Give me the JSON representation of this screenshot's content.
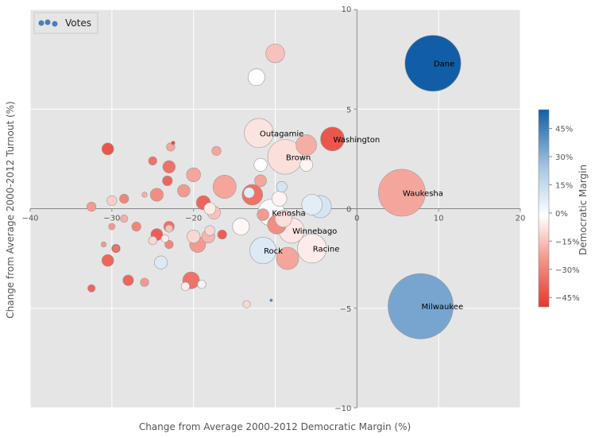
{
  "chart_data": {
    "type": "scatter",
    "xlabel": "Change from Average 2000-2012 Democratic Margin (%)",
    "ylabel": "Change from Average 2000-2012 Turnout (%)",
    "colorbar_label": "Democratic Margin",
    "xlim": [
      -40,
      20
    ],
    "ylim": [
      -10,
      10
    ],
    "x_ticks": [
      -40,
      -30,
      -20,
      -10,
      0,
      10,
      20
    ],
    "y_ticks": [
      -10,
      -5,
      0,
      5,
      10
    ],
    "x_tick_labels": [
      "−40",
      "−30",
      "−20",
      "−10",
      "0",
      "10",
      "20"
    ],
    "y_tick_labels": [
      "−10",
      "−5",
      "0",
      "5",
      "10"
    ],
    "colorbar_ticks": [
      45,
      30,
      15,
      0,
      -15,
      -30,
      -45
    ],
    "colorbar_tick_labels": [
      "45%",
      "30%",
      "15%",
      "0%",
      "−15%",
      "−30%",
      "−45%"
    ],
    "colorbar_range": [
      -50,
      55
    ],
    "grid": true,
    "legend": {
      "position": "top-left",
      "label": "Votes"
    },
    "colors": {
      "background": "#e5e5e5",
      "grid": "#ffffff",
      "dem": "#2166ac",
      "rep": "#e8362c"
    },
    "points": [
      {
        "x": 9.3,
        "y": 7.3,
        "size": 220000,
        "margin": 55,
        "label": "Dane"
      },
      {
        "x": 7.8,
        "y": -4.9,
        "size": 300000,
        "margin": 35,
        "label": "Milwaukee"
      },
      {
        "x": 5.5,
        "y": 0.8,
        "size": 155000,
        "margin": -22,
        "label": "Waukesha"
      },
      {
        "x": -3.0,
        "y": 3.5,
        "size": 40000,
        "margin": -42,
        "label": "Washington"
      },
      {
        "x": -12.0,
        "y": 3.8,
        "size": 60000,
        "margin": -7,
        "label": "Outagamie"
      },
      {
        "x": -8.8,
        "y": 2.6,
        "size": 85000,
        "margin": -8,
        "label": "Brown"
      },
      {
        "x": -10.5,
        "y": -0.2,
        "size": 50000,
        "margin": 2,
        "label": "Kenosha"
      },
      {
        "x": -8.0,
        "y": -1.1,
        "size": 45000,
        "margin": -6,
        "label": "Winnebago"
      },
      {
        "x": -5.5,
        "y": -2.0,
        "size": 60000,
        "margin": -5,
        "label": "Racine"
      },
      {
        "x": -11.5,
        "y": -2.1,
        "size": 50000,
        "margin": 10,
        "label": "Rock"
      },
      {
        "x": -10.0,
        "y": 7.8,
        "size": 25000,
        "margin": -15,
        "label": ""
      },
      {
        "x": -12.3,
        "y": 6.6,
        "size": 20000,
        "margin": 0,
        "label": ""
      },
      {
        "x": -6.2,
        "y": 3.2,
        "size": 30000,
        "margin": -20,
        "label": ""
      },
      {
        "x": -6.2,
        "y": 2.2,
        "size": 12000,
        "margin": -3,
        "label": ""
      },
      {
        "x": -9.2,
        "y": 1.1,
        "size": 8000,
        "margin": 12,
        "label": ""
      },
      {
        "x": -11.8,
        "y": 2.2,
        "size": 12000,
        "margin": 0,
        "label": ""
      },
      {
        "x": -11.8,
        "y": 1.4,
        "size": 10000,
        "margin": -22,
        "label": ""
      },
      {
        "x": -9.5,
        "y": 0.5,
        "size": 16000,
        "margin": -3,
        "label": ""
      },
      {
        "x": -5.5,
        "y": 0.2,
        "size": 30000,
        "margin": 8,
        "label": ""
      },
      {
        "x": -4.5,
        "y": 0.1,
        "size": 35000,
        "margin": 12,
        "label": ""
      },
      {
        "x": -9.0,
        "y": -0.5,
        "size": 20000,
        "margin": -8,
        "label": ""
      },
      {
        "x": -9.8,
        "y": -0.8,
        "size": 25000,
        "margin": -28,
        "label": ""
      },
      {
        "x": -8.5,
        "y": -2.5,
        "size": 35000,
        "margin": -22,
        "label": ""
      },
      {
        "x": -12.8,
        "y": 0.7,
        "size": 30000,
        "margin": -35,
        "label": ""
      },
      {
        "x": -13.2,
        "y": 0.8,
        "size": 8000,
        "margin": 8,
        "label": ""
      },
      {
        "x": -11.5,
        "y": -0.3,
        "size": 10000,
        "margin": -25,
        "label": ""
      },
      {
        "x": -14.2,
        "y": -0.9,
        "size": 20000,
        "margin": -2,
        "label": ""
      },
      {
        "x": -16.2,
        "y": 1.1,
        "size": 38000,
        "margin": -22,
        "label": ""
      },
      {
        "x": -16.5,
        "y": -1.3,
        "size": 6000,
        "margin": -40,
        "label": ""
      },
      {
        "x": -17.5,
        "y": -0.2,
        "size": 12000,
        "margin": -15,
        "label": ""
      },
      {
        "x": -18.0,
        "y": 0.0,
        "size": 10000,
        "margin": -5,
        "label": ""
      },
      {
        "x": -18.8,
        "y": 0.3,
        "size": 14000,
        "margin": -38,
        "label": ""
      },
      {
        "x": -18.2,
        "y": -1.4,
        "size": 12000,
        "margin": -18,
        "label": ""
      },
      {
        "x": -18.0,
        "y": -1.1,
        "size": 7000,
        "margin": -10,
        "label": ""
      },
      {
        "x": -17.2,
        "y": 2.9,
        "size": 6000,
        "margin": -22,
        "label": ""
      },
      {
        "x": -20.0,
        "y": 1.7,
        "size": 14000,
        "margin": -22,
        "label": ""
      },
      {
        "x": -21.2,
        "y": 0.9,
        "size": 11000,
        "margin": -25,
        "label": ""
      },
      {
        "x": -20.0,
        "y": -1.4,
        "size": 12000,
        "margin": -10,
        "label": ""
      },
      {
        "x": -19.5,
        "y": -1.8,
        "size": 18000,
        "margin": -25,
        "label": ""
      },
      {
        "x": -20.3,
        "y": -3.6,
        "size": 20000,
        "margin": -35,
        "label": ""
      },
      {
        "x": -21.0,
        "y": -3.9,
        "size": 5000,
        "margin": -5,
        "label": ""
      },
      {
        "x": -19.0,
        "y": -3.8,
        "size": 5000,
        "margin": 5,
        "label": ""
      },
      {
        "x": -22.5,
        "y": 3.3,
        "size": 1000,
        "margin": -45,
        "label": ""
      },
      {
        "x": -22.8,
        "y": 3.1,
        "size": 5000,
        "margin": -22,
        "label": ""
      },
      {
        "x": -23.0,
        "y": 2.1,
        "size": 11000,
        "margin": -35,
        "label": ""
      },
      {
        "x": -23.2,
        "y": 1.4,
        "size": 7000,
        "margin": -38,
        "label": ""
      },
      {
        "x": -23.0,
        "y": -0.9,
        "size": 8000,
        "margin": -35,
        "label": ""
      },
      {
        "x": -23.0,
        "y": -1.0,
        "size": 4000,
        "margin": -15,
        "label": ""
      },
      {
        "x": -23.0,
        "y": -1.8,
        "size": 5000,
        "margin": -30,
        "label": ""
      },
      {
        "x": -23.5,
        "y": -1.5,
        "size": 4000,
        "margin": -5,
        "label": ""
      },
      {
        "x": -24.5,
        "y": 0.7,
        "size": 12000,
        "margin": -28,
        "label": ""
      },
      {
        "x": -24.5,
        "y": -1.3,
        "size": 10000,
        "margin": -40,
        "label": ""
      },
      {
        "x": -24.0,
        "y": -2.7,
        "size": 12000,
        "margin": 10,
        "label": ""
      },
      {
        "x": -25.0,
        "y": 2.4,
        "size": 5000,
        "margin": -35,
        "label": ""
      },
      {
        "x": -25.0,
        "y": -1.6,
        "size": 5000,
        "margin": -10,
        "label": ""
      },
      {
        "x": -26.0,
        "y": 0.7,
        "size": 2000,
        "margin": -20,
        "label": ""
      },
      {
        "x": -26.0,
        "y": -3.7,
        "size": 5000,
        "margin": -25,
        "label": ""
      },
      {
        "x": -27.0,
        "y": -0.9,
        "size": 6000,
        "margin": -30,
        "label": ""
      },
      {
        "x": -28.0,
        "y": -3.6,
        "size": 8000,
        "margin": -38,
        "label": ""
      },
      {
        "x": -28.5,
        "y": 0.5,
        "size": 6000,
        "margin": -30,
        "label": ""
      },
      {
        "x": -28.5,
        "y": -0.5,
        "size": 4000,
        "margin": -20,
        "label": ""
      },
      {
        "x": -29.5,
        "y": -2.0,
        "size": 5000,
        "margin": -45,
        "label": ""
      },
      {
        "x": -29.5,
        "y": -2.0,
        "size": 3000,
        "margin": -35,
        "label": ""
      },
      {
        "x": -30.5,
        "y": 3.0,
        "size": 10000,
        "margin": -42,
        "label": ""
      },
      {
        "x": -30.0,
        "y": 0.4,
        "size": 7000,
        "margin": -12,
        "label": ""
      },
      {
        "x": -30.0,
        "y": -0.9,
        "size": 3000,
        "margin": -25,
        "label": ""
      },
      {
        "x": -30.5,
        "y": -2.6,
        "size": 10000,
        "margin": -38,
        "label": ""
      },
      {
        "x": -31.0,
        "y": -1.8,
        "size": 2000,
        "margin": -25,
        "label": ""
      },
      {
        "x": -32.5,
        "y": 0.1,
        "size": 6000,
        "margin": -25,
        "label": ""
      },
      {
        "x": -32.5,
        "y": -4.0,
        "size": 4000,
        "margin": -38,
        "label": ""
      },
      {
        "x": -13.5,
        "y": -4.8,
        "size": 4000,
        "margin": -10,
        "label": ""
      },
      {
        "x": -10.5,
        "y": -4.6,
        "size": 500,
        "margin": 45,
        "label": ""
      }
    ]
  }
}
